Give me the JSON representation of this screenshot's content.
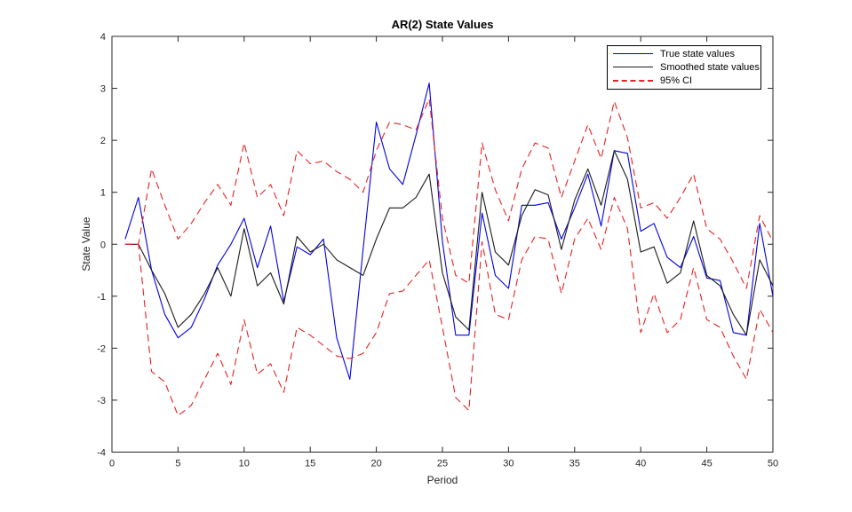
{
  "title": "AR(2) State Values",
  "xlabel": "Period",
  "ylabel": "State Value",
  "legend": [
    {
      "label": "True state values",
      "color": "#0000e8",
      "dash": false
    },
    {
      "label": "Smoothed state values",
      "color": "#1a1a1a",
      "dash": false
    },
    {
      "label": "95% CI",
      "color": "#e62222",
      "dash": true
    }
  ],
  "colors": {
    "axis": "#262626",
    "background": "#ffffff",
    "true_line": "#0000e8",
    "smoothed_line": "#1a1a1a",
    "ci_line": "#e62222"
  },
  "chart_data": {
    "type": "line",
    "title": "AR(2) State Values",
    "xlabel": "Period",
    "ylabel": "State Value",
    "xlim": [
      0,
      50
    ],
    "ylim": [
      -4,
      4
    ],
    "xticks": [
      0,
      5,
      10,
      15,
      20,
      25,
      30,
      35,
      40,
      45,
      50
    ],
    "yticks": [
      -4,
      -3,
      -2,
      -1,
      0,
      1,
      2,
      3,
      4
    ],
    "grid": false,
    "legend_position": "top-right",
    "x": [
      1,
      2,
      3,
      4,
      5,
      6,
      7,
      8,
      9,
      10,
      11,
      12,
      13,
      14,
      15,
      16,
      17,
      18,
      19,
      20,
      21,
      22,
      23,
      24,
      25,
      26,
      27,
      28,
      29,
      30,
      31,
      32,
      33,
      34,
      35,
      36,
      37,
      38,
      39,
      40,
      41,
      42,
      43,
      44,
      45,
      46,
      47,
      48,
      49,
      50
    ],
    "series": [
      {
        "name": "True state values",
        "color": "#0000e8",
        "dash": false,
        "values": [
          0.1,
          0.9,
          -0.5,
          -1.35,
          -1.8,
          -1.6,
          -1.05,
          -0.4,
          0.0,
          0.5,
          -0.45,
          0.35,
          -1.1,
          -0.05,
          -0.2,
          0.1,
          -1.8,
          -2.6,
          -0.1,
          2.35,
          1.45,
          1.15,
          2.1,
          3.1,
          0.05,
          -1.75,
          -1.75,
          0.6,
          -0.6,
          -0.85,
          0.75,
          0.75,
          0.8,
          0.1,
          0.7,
          1.35,
          0.35,
          1.8,
          1.75,
          0.25,
          0.4,
          -0.25,
          -0.45,
          0.15,
          -0.65,
          -0.7,
          -1.7,
          -1.75,
          0.4,
          -1.0
        ]
      },
      {
        "name": "Smoothed state values",
        "color": "#1a1a1a",
        "dash": false,
        "values": [
          0.0,
          0.0,
          -0.5,
          -0.95,
          -1.6,
          -1.35,
          -0.95,
          -0.45,
          -1.0,
          0.3,
          -0.8,
          -0.55,
          -1.15,
          0.15,
          -0.15,
          0.0,
          -0.3,
          -0.45,
          -0.6,
          0.1,
          0.7,
          0.7,
          0.9,
          1.35,
          -0.55,
          -1.4,
          -1.65,
          1.0,
          -0.15,
          -0.4,
          0.55,
          1.05,
          0.95,
          -0.1,
          0.85,
          1.45,
          0.75,
          1.8,
          1.25,
          -0.15,
          -0.05,
          -0.75,
          -0.55,
          0.45,
          -0.6,
          -0.8,
          -1.35,
          -1.75,
          -0.3,
          -0.8
        ]
      },
      {
        "name": "95% CI upper",
        "color": "#e62222",
        "dash": true,
        "values": [
          0.0,
          0.0,
          1.45,
          0.75,
          0.1,
          0.4,
          0.8,
          1.15,
          0.75,
          1.95,
          0.9,
          1.15,
          0.55,
          1.8,
          1.55,
          1.6,
          1.4,
          1.25,
          1.0,
          1.8,
          2.35,
          2.3,
          2.2,
          2.8,
          0.5,
          -0.6,
          -0.75,
          1.95,
          1.05,
          0.45,
          1.45,
          1.95,
          1.85,
          0.9,
          1.6,
          2.3,
          1.65,
          2.75,
          2.05,
          0.7,
          0.8,
          0.5,
          0.9,
          1.35,
          0.3,
          0.1,
          -0.35,
          -0.85,
          0.55,
          0.05
        ]
      },
      {
        "name": "95% CI lower",
        "color": "#e62222",
        "dash": true,
        "values": [
          0.0,
          0.0,
          -2.45,
          -2.65,
          -3.3,
          -3.1,
          -2.6,
          -2.1,
          -2.7,
          -1.45,
          -2.5,
          -2.3,
          -2.85,
          -1.6,
          -1.75,
          -1.95,
          -2.15,
          -2.2,
          -2.1,
          -1.7,
          -0.95,
          -0.9,
          -0.6,
          -0.3,
          -1.6,
          -2.95,
          -3.2,
          0.05,
          -1.35,
          -1.45,
          -0.3,
          0.15,
          0.1,
          -0.95,
          0.1,
          0.5,
          -0.1,
          0.9,
          0.3,
          -1.7,
          -0.95,
          -1.7,
          -1.45,
          -0.45,
          -1.45,
          -1.6,
          -2.15,
          -2.6,
          -1.25,
          -1.7
        ]
      }
    ]
  }
}
